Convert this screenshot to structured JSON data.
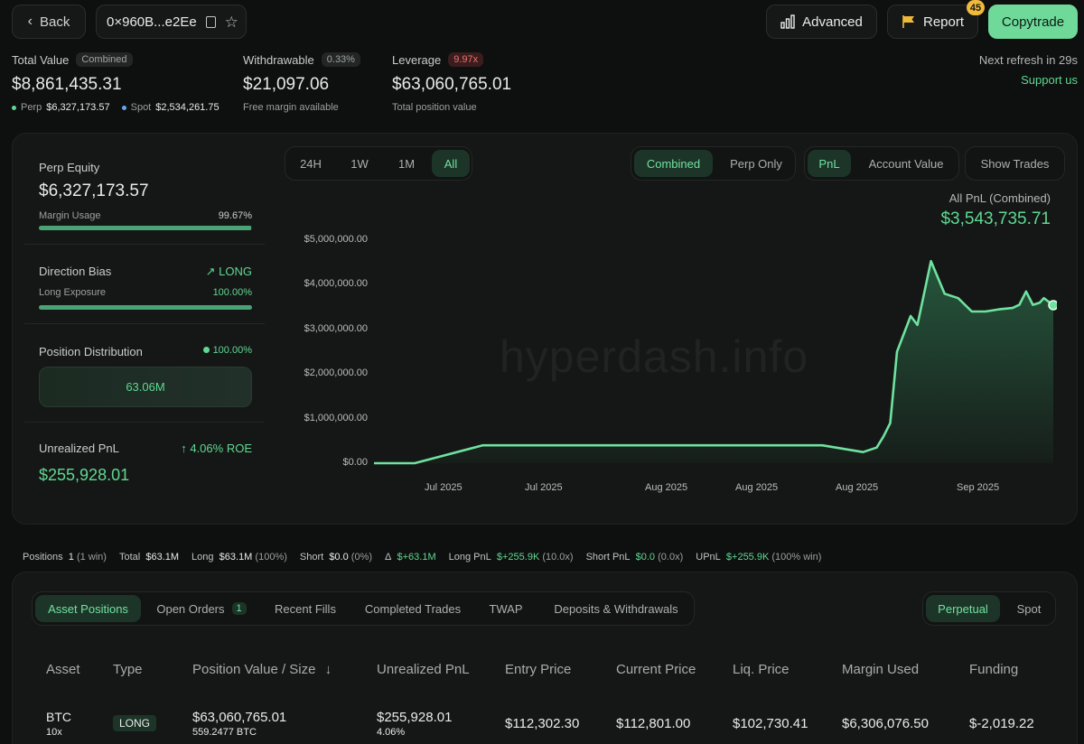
{
  "header": {
    "back_label": "Back",
    "address": "0×960B...e2Ee",
    "advanced_label": "Advanced",
    "report_label": "Report",
    "report_badge": "45",
    "copytrade_label": "Copytrade",
    "refresh_text": "Next refresh in 29s",
    "support_label": "Support us"
  },
  "summary": {
    "total_value_label": "Total Value",
    "total_value_tag": "Combined",
    "total_value": "$8,861,435.31",
    "perp_label": "Perp",
    "perp_value": "$6,327,173.57",
    "spot_label": "Spot",
    "spot_value": "$2,534,261.75",
    "withdrawable_label": "Withdrawable",
    "withdrawable_tag": "0.33%",
    "withdrawable_value": "$21,097.06",
    "withdrawable_sub": "Free margin available",
    "leverage_label": "Leverage",
    "leverage_tag": "9.97x",
    "leverage_value": "$63,060,765.01",
    "leverage_sub": "Total position value"
  },
  "side": {
    "perp_equity_label": "Perp Equity",
    "perp_equity_value": "$6,327,173.57",
    "margin_usage_label": "Margin Usage",
    "margin_usage_value": "99.67%",
    "margin_usage_fraction": 0.9967,
    "direction_label": "Direction Bias",
    "direction_value": "LONG",
    "long_exposure_label": "Long Exposure",
    "long_exposure_value": "100.00%",
    "long_exposure_fraction": 1.0,
    "distribution_label": "Position Distribution",
    "distribution_value": "100.00%",
    "distribution_box": "63.06M",
    "upnl_label": "Unrealized PnL",
    "upnl_roe": "4.06% ROE",
    "upnl_value": "$255,928.01"
  },
  "chart_controls": {
    "ranges": [
      "24H",
      "1W",
      "1M",
      "All"
    ],
    "active_range": "All",
    "mode_combined": "Combined",
    "mode_perp": "Perp Only",
    "metric_pnl": "PnL",
    "metric_account": "Account Value",
    "show_trades": "Show Trades",
    "all_pnl_label": "All PnL (Combined)",
    "all_pnl_value": "$3,543,735.71",
    "watermark": "hyperdash.info"
  },
  "chart_data": {
    "type": "area",
    "yticks": [
      "$5,000,000.00",
      "$4,000,000.00",
      "$3,000,000.00",
      "$2,000,000.00",
      "$1,000,000.00",
      "$0.00"
    ],
    "xticks": [
      "Jul 2025",
      "Jul 2025",
      "Aug 2025",
      "Aug 2025",
      "Aug 2025",
      "Sep 2025"
    ],
    "ylim": [
      0,
      5000000
    ],
    "series": [
      {
        "x": [
          0,
          6,
          11,
          16,
          21,
          27,
          32,
          39,
          46,
          53,
          60,
          66,
          70,
          72,
          74,
          75,
          76,
          77,
          79,
          80,
          82,
          84,
          86,
          88,
          90,
          92,
          94,
          95,
          96,
          97,
          98,
          98.6,
          100
        ],
        "values": [
          0,
          0,
          200000,
          400000,
          400000,
          400000,
          400000,
          400000,
          400000,
          400000,
          400000,
          400000,
          300000,
          250000,
          350000,
          600000,
          900000,
          2500000,
          3300000,
          3100000,
          4530000,
          3800000,
          3700000,
          3400000,
          3400000,
          3450000,
          3480000,
          3550000,
          3850000,
          3550000,
          3600000,
          3700000,
          3543735
        ]
      }
    ]
  },
  "stats_bar": {
    "positions_label": "Positions",
    "positions_value": "1",
    "positions_sub": "(1 win)",
    "total_label": "Total",
    "total_value": "$63.1M",
    "long_label": "Long",
    "long_value": "$63.1M",
    "long_sub": "(100%)",
    "short_label": "Short",
    "short_value": "$0.0",
    "short_sub": "(0%)",
    "delta_label": "Δ",
    "delta_value": "$+63.1M",
    "long_pnl_label": "Long PnL",
    "long_pnl_value": "$+255.9K",
    "long_pnl_sub": "(10.0x)",
    "short_pnl_label": "Short PnL",
    "short_pnl_value": "$0.0",
    "short_pnl_sub": "(0.0x)",
    "upnl_label": "UPnL",
    "upnl_value": "$+255.9K",
    "upnl_sub": "(100% win)"
  },
  "tabs": {
    "asset_positions": "Asset Positions",
    "open_orders": "Open Orders",
    "open_orders_count": "1",
    "recent_fills": "Recent Fills",
    "completed_trades": "Completed Trades",
    "twap": "TWAP",
    "deposits": "Deposits & Withdrawals",
    "perpetual": "Perpetual",
    "spot": "Spot"
  },
  "table": {
    "headers": [
      "Asset",
      "Type",
      "Position Value / Size",
      "Unrealized PnL",
      "Entry Price",
      "Current Price",
      "Liq. Price",
      "Margin Used",
      "Funding"
    ],
    "row": {
      "asset": "BTC",
      "leverage": "10x",
      "type": "LONG",
      "position_value": "$63,060,765.01",
      "position_size": "559.2477 BTC",
      "upnl": "$255,928.01",
      "upnl_pct": "4.06%",
      "entry": "$112,302.30",
      "current": "$112,801.00",
      "liq": "$102,730.41",
      "margin": "$6,306,076.50",
      "funding": "$-2,019.22"
    }
  },
  "colors": {
    "accent": "#5fd892",
    "copytrade_bg": "#6fd99a",
    "negative": "#ef6f6f",
    "leverage_tag": "#ef6f6f"
  }
}
